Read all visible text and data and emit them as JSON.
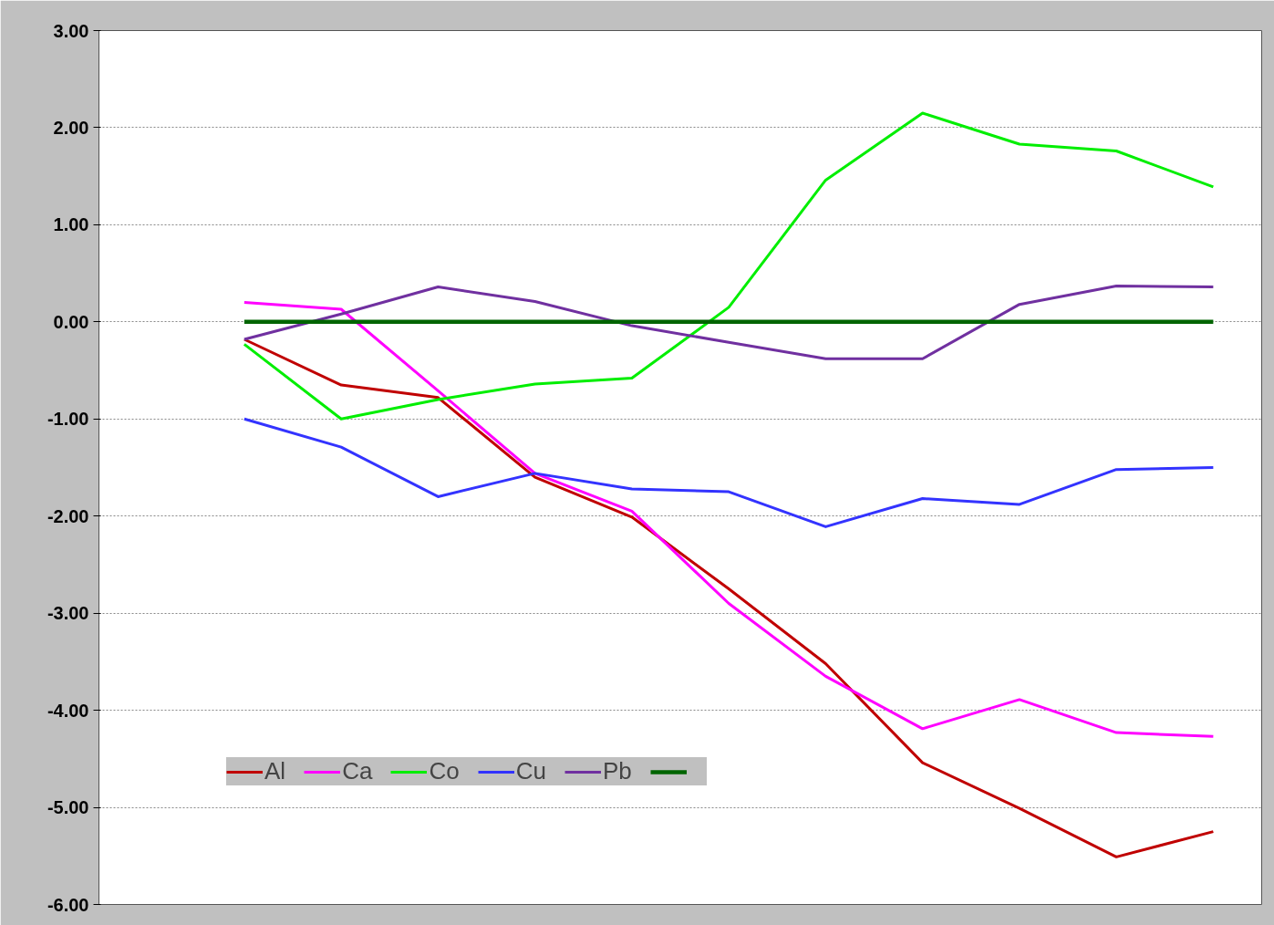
{
  "chart_data": {
    "type": "line",
    "categories": [
      null,
      null,
      null,
      null,
      null,
      null,
      null,
      null,
      null,
      null,
      null,
      null
    ],
    "series": [
      {
        "name": "Al",
        "color": "#c00000",
        "values": [
          null,
          -0.18,
          -0.65,
          -0.78,
          -1.6,
          -2.01,
          -2.75,
          -3.52,
          -4.54,
          -5.01,
          -5.51,
          -5.25
        ]
      },
      {
        "name": "Ca",
        "color": "#ff00ff",
        "values": [
          null,
          0.2,
          0.13,
          -0.71,
          -1.56,
          -1.95,
          -2.9,
          -3.65,
          -4.19,
          -3.89,
          -4.23,
          -4.27
        ]
      },
      {
        "name": "Co",
        "color": "#00ee00",
        "values": [
          null,
          -0.23,
          -1.0,
          -0.8,
          -0.64,
          -0.58,
          0.15,
          1.46,
          2.15,
          1.83,
          1.76,
          1.39
        ]
      },
      {
        "name": "Cu",
        "color": "#3333ff",
        "values": [
          null,
          -1.0,
          -1.29,
          -1.8,
          -1.56,
          -1.72,
          -1.75,
          -2.11,
          -1.82,
          -1.88,
          -1.52,
          -1.5
        ]
      },
      {
        "name": "Pb",
        "color": "#7030a0",
        "values": [
          null,
          -0.18,
          0.08,
          0.36,
          0.21,
          -0.04,
          -0.21,
          -0.38,
          -0.38,
          0.18,
          0.37,
          0.36
        ]
      },
      {
        "color": "#006400",
        "values": [
          null,
          0,
          0,
          0,
          0,
          0,
          0,
          0,
          0,
          0,
          0,
          0
        ]
      }
    ],
    "ylim": [
      -6,
      3
    ],
    "yticks": [
      {
        "value": 3,
        "label": "3.00"
      },
      {
        "value": 2,
        "label": "2.00"
      },
      {
        "value": 1,
        "label": "1.00"
      },
      {
        "value": 0,
        "label": "0.00"
      },
      {
        "value": -1,
        "label": "-1.00"
      },
      {
        "value": -2,
        "label": "-2.00"
      },
      {
        "value": -3,
        "label": "-3.00"
      },
      {
        "value": -4,
        "label": "-4.00"
      },
      {
        "value": -5,
        "label": "-5.00"
      },
      {
        "value": -6,
        "label": "-6.00"
      }
    ],
    "grid": "y",
    "legend": "bottom left",
    "tick_labels": "y",
    "marker": "none",
    "line_style": "solid"
  }
}
